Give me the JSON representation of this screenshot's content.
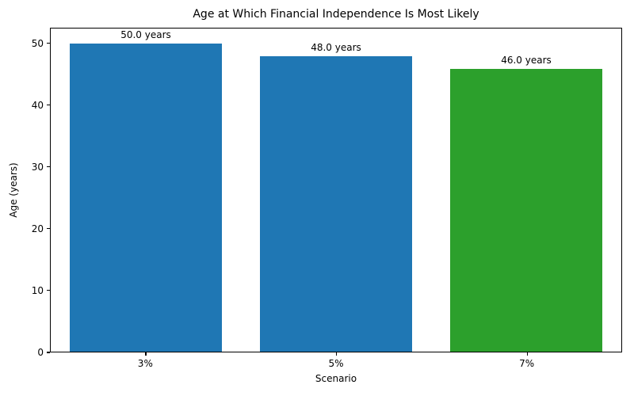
{
  "chart_data": {
    "type": "bar",
    "title": "Age at Which Financial Independence Is Most Likely",
    "xlabel": "Scenario",
    "ylabel": "Age (years)",
    "categories": [
      "3%",
      "5%",
      "7%"
    ],
    "values": [
      50.0,
      48.0,
      46.0
    ],
    "data_labels": [
      "50.0 years",
      "48.0 years",
      "46.0 years"
    ],
    "bar_colors": [
      "#1f77b4",
      "#1f77b4",
      "#2ca02c"
    ],
    "ylim": [
      0,
      52.5
    ],
    "yticks": [
      0,
      10,
      20,
      30,
      40,
      50
    ],
    "grid": false,
    "legend_position": "none",
    "bar_width_fraction": 0.8
  }
}
